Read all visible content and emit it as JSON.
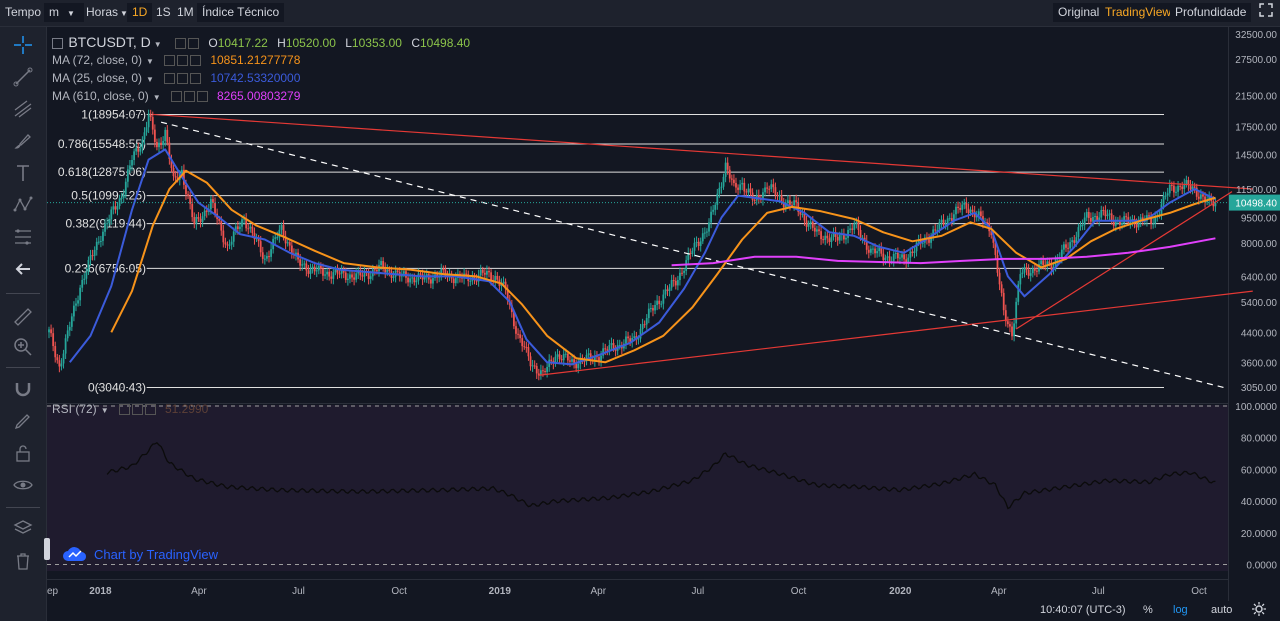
{
  "toolbar": {
    "tempo": "Tempo",
    "interval_sel": "m",
    "horas": "Horas",
    "ranges": [
      "1D",
      "1S",
      "1M"
    ],
    "indicators": "Índice Técnico",
    "views": [
      "Original",
      "TradingView",
      "Profundidade"
    ],
    "active_view": "TradingView"
  },
  "symbol": {
    "name": "BTCUSDT, D",
    "o_label": "O",
    "o": "10417.22",
    "h_label": "H",
    "h": "10520.00",
    "l_label": "L",
    "l": "10353.00",
    "c_label": "C",
    "c": "10498.40"
  },
  "indicators": [
    {
      "label": "MA (72, close, 0)",
      "value": "10851.21277778",
      "color": "#f7931a"
    },
    {
      "label": "MA (25, close, 0)",
      "value": "10742.53320000",
      "color": "#3b5bdb"
    },
    {
      "label": "MA (610, close, 0)",
      "value": "8265.00803279",
      "color": "#e040fb"
    }
  ],
  "rsi": {
    "label": "RSI (72)",
    "value": "51.2990"
  },
  "watermark": "Chart by TradingView",
  "status": {
    "time": "10:40:07 (UTC-3)",
    "percent": "%",
    "log": "log",
    "auto": "auto"
  },
  "colors": {
    "bg": "#131722",
    "up": "#26a69a",
    "down": "#ef5350",
    "fib": "#e0e0e0",
    "trend": "#e53935",
    "accent": "#f9a825"
  },
  "chart_data": {
    "type": "line",
    "title": "BTCUSDT, D",
    "scale": "log",
    "price_axis": [
      "32500.00",
      "27500.00",
      "21500.00",
      "17500.00",
      "14500.00",
      "11500.00",
      "9500.00",
      "8000.00",
      "6400.00",
      "5400.00",
      "4400.00",
      "3600.00",
      "3050.00"
    ],
    "price_ticks": [
      32500,
      27500,
      21500,
      17500,
      14500,
      11500,
      9500,
      8000,
      6400,
      5400,
      4400,
      3600,
      3050
    ],
    "last_price": "10498.40",
    "time_axis": [
      "ep",
      "2018",
      "Apr",
      "Jul",
      "Oct",
      "2019",
      "Apr",
      "Jul",
      "Oct",
      "2020",
      "Apr",
      "Jul",
      "Oct"
    ],
    "fib_levels": [
      {
        "label": "1(18954.07)",
        "value": 18954.07
      },
      {
        "label": "0.786(15548.55)",
        "value": 15548.55
      },
      {
        "label": "0.618(12875.06)",
        "value": 12875.06
      },
      {
        "label": "0.5(10997.25)",
        "value": 10997.25
      },
      {
        "label": "0.382(9119.44)",
        "value": 9119.44
      },
      {
        "label": "0.236(6756.05)",
        "value": 6756.05
      },
      {
        "label": "0(3040.43)",
        "value": 3040.43
      }
    ],
    "series": [
      {
        "name": "Close",
        "color": "#d1d4dc",
        "points": [
          [
            0,
            4400
          ],
          [
            5,
            3500
          ],
          [
            15,
            6000
          ],
          [
            25,
            8500
          ],
          [
            35,
            11000
          ],
          [
            40,
            14000
          ],
          [
            45,
            16000
          ],
          [
            48,
            18954
          ],
          [
            52,
            15000
          ],
          [
            56,
            17000
          ],
          [
            60,
            12000
          ],
          [
            64,
            13000
          ],
          [
            70,
            9000
          ],
          [
            78,
            10500
          ],
          [
            86,
            7800
          ],
          [
            94,
            9500
          ],
          [
            104,
            7200
          ],
          [
            112,
            8800
          ],
          [
            120,
            7000
          ],
          [
            130,
            6600
          ],
          [
            140,
            6500
          ],
          [
            150,
            6400
          ],
          [
            160,
            6800
          ],
          [
            170,
            6400
          ],
          [
            180,
            6300
          ],
          [
            190,
            6500
          ],
          [
            200,
            6300
          ],
          [
            210,
            6500
          ],
          [
            215,
            6400
          ],
          [
            220,
            5800
          ],
          [
            226,
            4300
          ],
          [
            232,
            3600
          ],
          [
            238,
            3300
          ],
          [
            244,
            3800
          ],
          [
            252,
            3600
          ],
          [
            262,
            3700
          ],
          [
            272,
            4000
          ],
          [
            282,
            4200
          ],
          [
            292,
            5300
          ],
          [
            302,
            6200
          ],
          [
            312,
            8000
          ],
          [
            318,
            9000
          ],
          [
            322,
            11000
          ],
          [
            326,
            13500
          ],
          [
            330,
            11500
          ],
          [
            334,
            12000
          ],
          [
            340,
            10500
          ],
          [
            346,
            11800
          ],
          [
            352,
            10800
          ],
          [
            360,
            10200
          ],
          [
            370,
            8500
          ],
          [
            380,
            8200
          ],
          [
            388,
            9000
          ],
          [
            396,
            7600
          ],
          [
            404,
            7300
          ],
          [
            412,
            7200
          ],
          [
            420,
            8000
          ],
          [
            428,
            8800
          ],
          [
            436,
            9800
          ],
          [
            442,
            10300
          ],
          [
            448,
            9500
          ],
          [
            454,
            8800
          ],
          [
            460,
            5000
          ],
          [
            464,
            4400
          ],
          [
            468,
            6500
          ],
          [
            476,
            6800
          ],
          [
            484,
            7000
          ],
          [
            492,
            8000
          ],
          [
            500,
            9500
          ],
          [
            508,
            9700
          ],
          [
            516,
            9200
          ],
          [
            524,
            9300
          ],
          [
            532,
            9300
          ],
          [
            540,
            11500
          ],
          [
            546,
            11800
          ],
          [
            552,
            11500
          ],
          [
            558,
            10500
          ],
          [
            562,
            10498
          ]
        ]
      },
      {
        "name": "MA (25, close, 0)",
        "color": "#3b5bdb",
        "points": [
          [
            10,
            3600
          ],
          [
            20,
            4300
          ],
          [
            30,
            6000
          ],
          [
            40,
            10000
          ],
          [
            48,
            14000
          ],
          [
            56,
            15000
          ],
          [
            64,
            12500
          ],
          [
            72,
            10500
          ],
          [
            82,
            9500
          ],
          [
            92,
            8500
          ],
          [
            104,
            8200
          ],
          [
            116,
            7500
          ],
          [
            128,
            7000
          ],
          [
            140,
            6700
          ],
          [
            152,
            6600
          ],
          [
            166,
            6500
          ],
          [
            180,
            6400
          ],
          [
            196,
            6400
          ],
          [
            212,
            6200
          ],
          [
            222,
            5400
          ],
          [
            230,
            4200
          ],
          [
            240,
            3600
          ],
          [
            252,
            3550
          ],
          [
            266,
            3800
          ],
          [
            280,
            4100
          ],
          [
            294,
            4700
          ],
          [
            306,
            5900
          ],
          [
            316,
            7500
          ],
          [
            324,
            9500
          ],
          [
            332,
            11000
          ],
          [
            342,
            10800
          ],
          [
            352,
            10600
          ],
          [
            364,
            9800
          ],
          [
            376,
            8600
          ],
          [
            388,
            8400
          ],
          [
            400,
            7800
          ],
          [
            412,
            7500
          ],
          [
            424,
            8300
          ],
          [
            436,
            9300
          ],
          [
            446,
            9800
          ],
          [
            454,
            8800
          ],
          [
            462,
            6400
          ],
          [
            470,
            5600
          ],
          [
            482,
            6500
          ],
          [
            494,
            7800
          ],
          [
            504,
            9300
          ],
          [
            516,
            9300
          ],
          [
            528,
            9300
          ],
          [
            540,
            10500
          ],
          [
            552,
            11500
          ],
          [
            562,
            10742
          ]
        ]
      },
      {
        "name": "MA (72, close, 0)",
        "color": "#f7931a",
        "points": [
          [
            30,
            4400
          ],
          [
            40,
            5800
          ],
          [
            50,
            9000
          ],
          [
            58,
            11500
          ],
          [
            66,
            13000
          ],
          [
            76,
            12000
          ],
          [
            88,
            10000
          ],
          [
            100,
            9000
          ],
          [
            114,
            8300
          ],
          [
            128,
            7600
          ],
          [
            142,
            7000
          ],
          [
            158,
            6800
          ],
          [
            174,
            6700
          ],
          [
            190,
            6500
          ],
          [
            206,
            6400
          ],
          [
            218,
            6100
          ],
          [
            228,
            5300
          ],
          [
            240,
            4300
          ],
          [
            254,
            3700
          ],
          [
            268,
            3600
          ],
          [
            282,
            3900
          ],
          [
            296,
            4300
          ],
          [
            310,
            5200
          ],
          [
            322,
            6500
          ],
          [
            334,
            8200
          ],
          [
            346,
            9800
          ],
          [
            358,
            10200
          ],
          [
            372,
            9900
          ],
          [
            388,
            9400
          ],
          [
            402,
            8600
          ],
          [
            416,
            8100
          ],
          [
            430,
            8400
          ],
          [
            444,
            9200
          ],
          [
            454,
            8800
          ],
          [
            466,
            7500
          ],
          [
            478,
            6800
          ],
          [
            490,
            7200
          ],
          [
            502,
            8100
          ],
          [
            514,
            8800
          ],
          [
            526,
            9300
          ],
          [
            540,
            9800
          ],
          [
            552,
            10400
          ],
          [
            562,
            10851
          ]
        ]
      },
      {
        "name": "MA (610, close, 0)",
        "color": "#e040fb",
        "points": [
          [
            300,
            6900
          ],
          [
            320,
            7000
          ],
          [
            340,
            7300
          ],
          [
            360,
            7300
          ],
          [
            380,
            7100
          ],
          [
            400,
            7050
          ],
          [
            420,
            7000
          ],
          [
            440,
            7100
          ],
          [
            460,
            7200
          ],
          [
            480,
            7200
          ],
          [
            500,
            7300
          ],
          [
            520,
            7500
          ],
          [
            540,
            7800
          ],
          [
            562,
            8265
          ]
        ]
      }
    ],
    "trendlines": [
      {
        "color": "#e53935",
        "from": [
          50,
          18954
        ],
        "to": [
          580,
          11500
        ]
      },
      {
        "color": "#e53935",
        "from": [
          236,
          3300
        ],
        "to": [
          580,
          5800
        ]
      },
      {
        "color": "#e53935",
        "from": [
          466,
          4500
        ],
        "to": [
          570,
          11300
        ]
      },
      {
        "color": "#ffffff",
        "dashed": true,
        "from": [
          54,
          18000
        ],
        "to": [
          566,
          3040
        ]
      }
    ],
    "rsi_axis": [
      "100.0000",
      "80.0000",
      "60.0000",
      "40.0000",
      "20.0000",
      "0.0000"
    ],
    "rsi_ticks": [
      100,
      80,
      60,
      40,
      20,
      0
    ],
    "rsi_points": [
      [
        28,
        58
      ],
      [
        40,
        62
      ],
      [
        48,
        72
      ],
      [
        52,
        78
      ],
      [
        58,
        64
      ],
      [
        70,
        54
      ],
      [
        86,
        49
      ],
      [
        110,
        47
      ],
      [
        150,
        46
      ],
      [
        190,
        47
      ],
      [
        214,
        48
      ],
      [
        222,
        44
      ],
      [
        232,
        37
      ],
      [
        244,
        40
      ],
      [
        270,
        42
      ],
      [
        290,
        46
      ],
      [
        310,
        53
      ],
      [
        320,
        62
      ],
      [
        326,
        70
      ],
      [
        336,
        63
      ],
      [
        350,
        58
      ],
      [
        370,
        50
      ],
      [
        390,
        49
      ],
      [
        410,
        47
      ],
      [
        430,
        51
      ],
      [
        446,
        57
      ],
      [
        456,
        50
      ],
      [
        462,
        36
      ],
      [
        470,
        45
      ],
      [
        490,
        49
      ],
      [
        510,
        53
      ],
      [
        530,
        52
      ],
      [
        540,
        57
      ],
      [
        550,
        58
      ],
      [
        562,
        51.3
      ]
    ]
  }
}
